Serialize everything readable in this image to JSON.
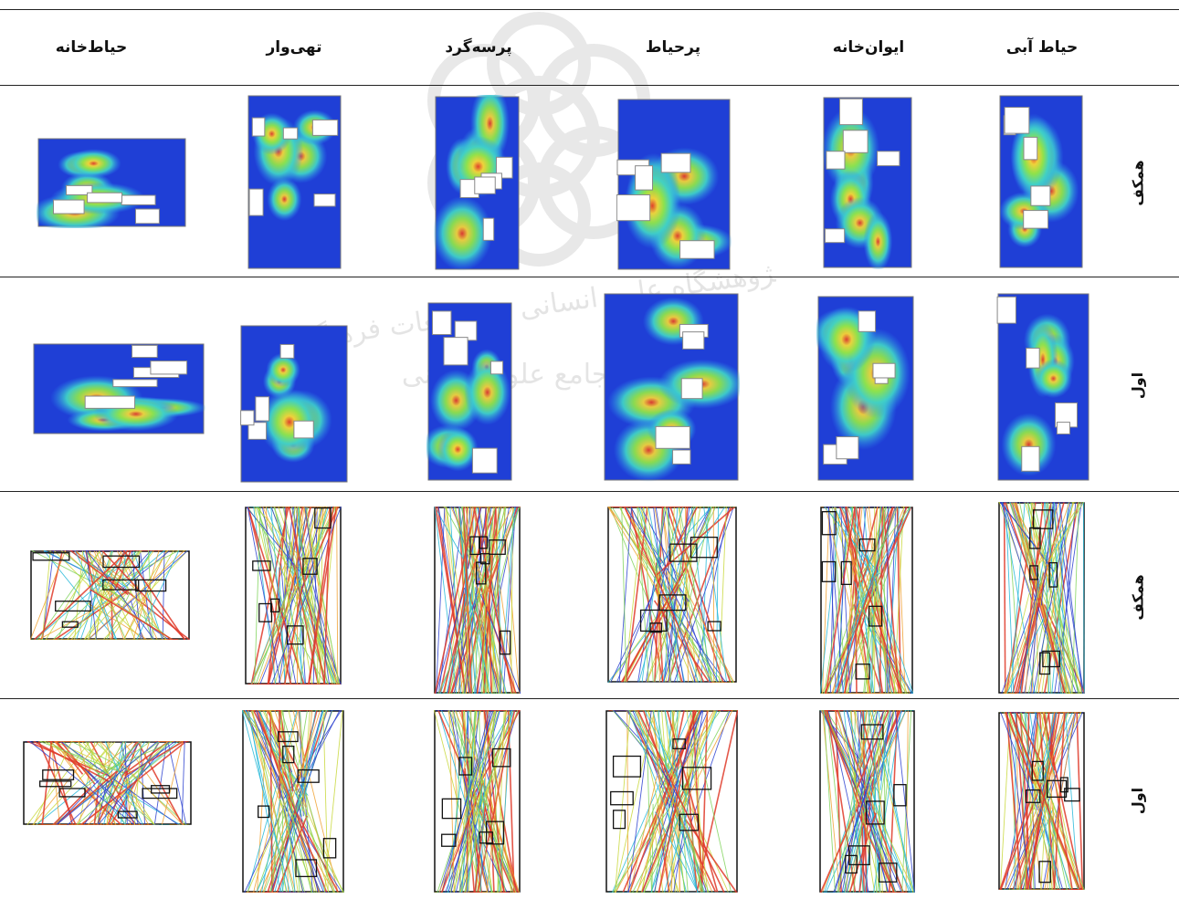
{
  "columns": [
    {
      "key": "c1",
      "label": "حیاط آبی"
    },
    {
      "key": "c2",
      "label": "ایوان‌خانه"
    },
    {
      "key": "c3",
      "label": "پرحیاط"
    },
    {
      "key": "c4",
      "label": "پرسه‌گرد"
    },
    {
      "key": "c5",
      "label": "تهی‌وار"
    },
    {
      "key": "c6",
      "label": "حیاط‌خانه"
    }
  ],
  "rows": [
    {
      "label": "همکف",
      "kind": "heatmap"
    },
    {
      "label": "اول",
      "kind": "heatmap"
    },
    {
      "label": "همکف",
      "kind": "isovist"
    },
    {
      "label": "اول",
      "kind": "isovist"
    }
  ],
  "watermark": {
    "line1": "پژوهشگاه علوم انسانی و مطالعات فرهنگی",
    "line2": "پرتال جامع علوم انسانی"
  },
  "colors": {
    "heat": [
      "#1f3fd6",
      "#2b8cf0",
      "#3fd0c8",
      "#8fe24a",
      "#f0d23a",
      "#e23a2a"
    ],
    "rays": [
      "#2a3fd0",
      "#24b8d8",
      "#7fd35a",
      "#c8d83a",
      "#f0a030",
      "#e03a2a"
    ]
  }
}
